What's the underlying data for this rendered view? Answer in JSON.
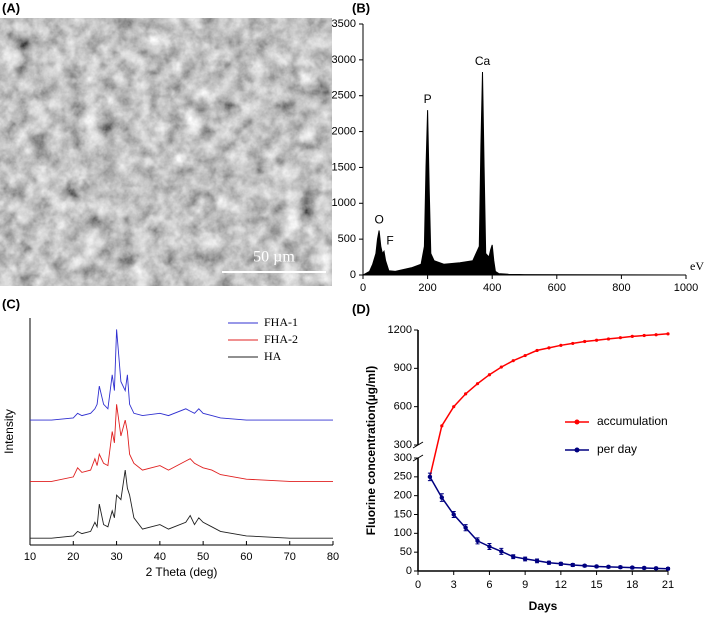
{
  "chart_data": [
    {
      "type": "image",
      "panel_label": "(A)",
      "scale_bar_label": "50 µm"
    },
    {
      "type": "area",
      "panel_label": "(B)",
      "x_label": "eV",
      "color": "#000000",
      "x": [
        0,
        20,
        30,
        40,
        45,
        50,
        55,
        60,
        65,
        70,
        80,
        100,
        150,
        180,
        190,
        195,
        200,
        205,
        210,
        220,
        250,
        300,
        340,
        360,
        365,
        370,
        375,
        380,
        390,
        395,
        400,
        405,
        410,
        420,
        450,
        500,
        1000
      ],
      "values": [
        0,
        50,
        150,
        300,
        500,
        620,
        400,
        300,
        330,
        200,
        60,
        50,
        100,
        150,
        400,
        1500,
        2300,
        1200,
        300,
        200,
        150,
        170,
        200,
        400,
        1800,
        2830,
        1500,
        300,
        250,
        350,
        420,
        200,
        50,
        20,
        10,
        5,
        0
      ],
      "xlim": [
        0,
        1000
      ],
      "xticks": [
        0,
        200,
        400,
        600,
        800,
        1000
      ],
      "ylim": [
        0,
        3500
      ],
      "yticks": [
        0,
        500,
        1000,
        1500,
        2000,
        2500,
        3000,
        3500
      ],
      "peak_labels": [
        {
          "label": "O",
          "x": 50,
          "value": 620
        },
        {
          "label": "F",
          "x": 65,
          "value": 330
        },
        {
          "label": "P",
          "x": 200,
          "value": 2300
        },
        {
          "label": "Ca",
          "x": 370,
          "value": 2830
        }
      ]
    },
    {
      "type": "line",
      "panel_label": "(C)",
      "x_label": "2 Theta (deg)",
      "y_label": "Intensity",
      "x": [
        10,
        15,
        20,
        21,
        22,
        24,
        25,
        25.5,
        26,
        27,
        28,
        29,
        29.5,
        30,
        31,
        32,
        32.5,
        33,
        34,
        36,
        40,
        42,
        46,
        47,
        48,
        49,
        50,
        52,
        54,
        60,
        70,
        80
      ],
      "series": [
        {
          "name": "FHA-1",
          "color": "#3030d0",
          "values": [
            55,
            55,
            56,
            58,
            57,
            58,
            60,
            62,
            70,
            62,
            60,
            75,
            68,
            95,
            72,
            68,
            75,
            62,
            58,
            57,
            58,
            57,
            60,
            59,
            58,
            60,
            58,
            57,
            56,
            55,
            55,
            55
          ]
        },
        {
          "name": "FHA-2",
          "color": "#e02020",
          "values": [
            28,
            28,
            30,
            34,
            32,
            33,
            38,
            35,
            40,
            36,
            35,
            50,
            45,
            62,
            48,
            55,
            50,
            40,
            36,
            33,
            35,
            33,
            37,
            38,
            36,
            35,
            34,
            33,
            31,
            29,
            28,
            28
          ]
        },
        {
          "name": "HA",
          "color": "#202020",
          "values": [
            3,
            3,
            4,
            6,
            5,
            6,
            10,
            8,
            18,
            9,
            8,
            15,
            12,
            22,
            20,
            33,
            25,
            22,
            12,
            7,
            9,
            7,
            10,
            13,
            9,
            12,
            10,
            8,
            6,
            4,
            3,
            3
          ]
        }
      ],
      "xlim": [
        10,
        80
      ],
      "xticks": [
        10,
        20,
        30,
        40,
        50,
        60,
        70,
        80
      ],
      "ylim": [
        0,
        100
      ],
      "legend": "upper right"
    },
    {
      "type": "broken-line",
      "panel_label": "(D)",
      "x_label": "Days",
      "y_label": "Fluorine concentration(µg/ml)",
      "x": [
        1,
        2,
        3,
        4,
        5,
        6,
        7,
        8,
        9,
        10,
        11,
        12,
        13,
        14,
        15,
        16,
        17,
        18,
        19,
        20,
        21
      ],
      "series": [
        {
          "name": "accumulation",
          "color": "#ff0000",
          "values": [
            250,
            450,
            600,
            700,
            780,
            850,
            910,
            960,
            1000,
            1040,
            1060,
            1080,
            1095,
            1110,
            1120,
            1130,
            1140,
            1150,
            1157,
            1163,
            1170
          ]
        },
        {
          "name": "per day",
          "color": "#000080",
          "values": [
            250,
            195,
            150,
            115,
            80,
            65,
            52,
            38,
            32,
            27,
            22,
            19,
            16,
            14,
            12,
            11,
            10,
            9,
            8,
            7,
            6
          ],
          "errors": [
            10,
            10,
            8,
            8,
            8,
            8,
            8,
            5,
            5,
            5,
            4,
            4,
            4,
            3,
            3,
            3,
            3,
            3,
            3,
            3,
            3
          ]
        }
      ],
      "xlim": [
        0,
        21
      ],
      "xticks": [
        0,
        3,
        6,
        9,
        12,
        15,
        18,
        21
      ],
      "ylim": [
        0,
        300
      ],
      "yticks": [
        0,
        50,
        100,
        150,
        200,
        250,
        300
      ],
      "upper_ylim": [
        300,
        1200
      ],
      "upper_yticks": [
        300,
        600,
        900,
        1200
      ],
      "legend": "right"
    }
  ]
}
